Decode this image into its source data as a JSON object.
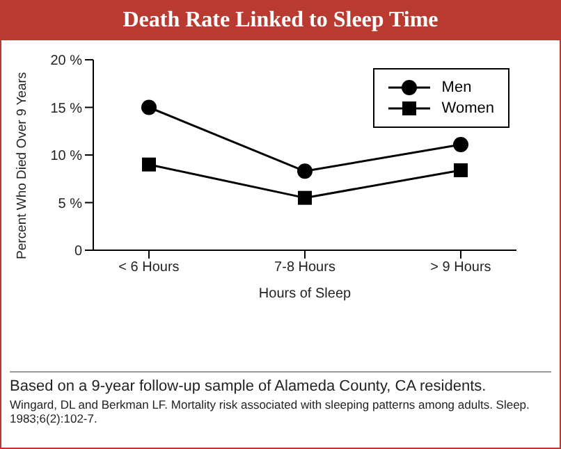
{
  "chart_data": {
    "type": "line",
    "title": "Death Rate Linked to Sleep Time",
    "xlabel": "Hours of Sleep",
    "ylabel": "Percent Who Died Over 9 Years",
    "categories": [
      "< 6 Hours",
      "7-8 Hours",
      "> 9 Hours"
    ],
    "series": [
      {
        "name": "Men",
        "color": "#000000",
        "marker": "circle",
        "values": [
          15,
          8.3,
          11.1
        ]
      },
      {
        "name": "Women",
        "color": "#000000",
        "marker": "square",
        "values": [
          9,
          5.5,
          8.4
        ]
      }
    ],
    "ylim": [
      0,
      20
    ],
    "yticks": [
      {
        "value": 0,
        "label": "0"
      },
      {
        "value": 5,
        "label": "5 %"
      },
      {
        "value": 10,
        "label": "10 %"
      },
      {
        "value": 15,
        "label": "15 %"
      },
      {
        "value": 20,
        "label": "20 %"
      }
    ],
    "grid": false,
    "legend": "top right",
    "line_style": "solid",
    "annotations": [
      "Based on a 9-year follow-up sample of Alameda County, CA residents.",
      "Wingard, DL and Berkman LF.  Mortality risk associated with sleeping patterns among adults. Sleep. 1983;6(2):102-7."
    ]
  }
}
